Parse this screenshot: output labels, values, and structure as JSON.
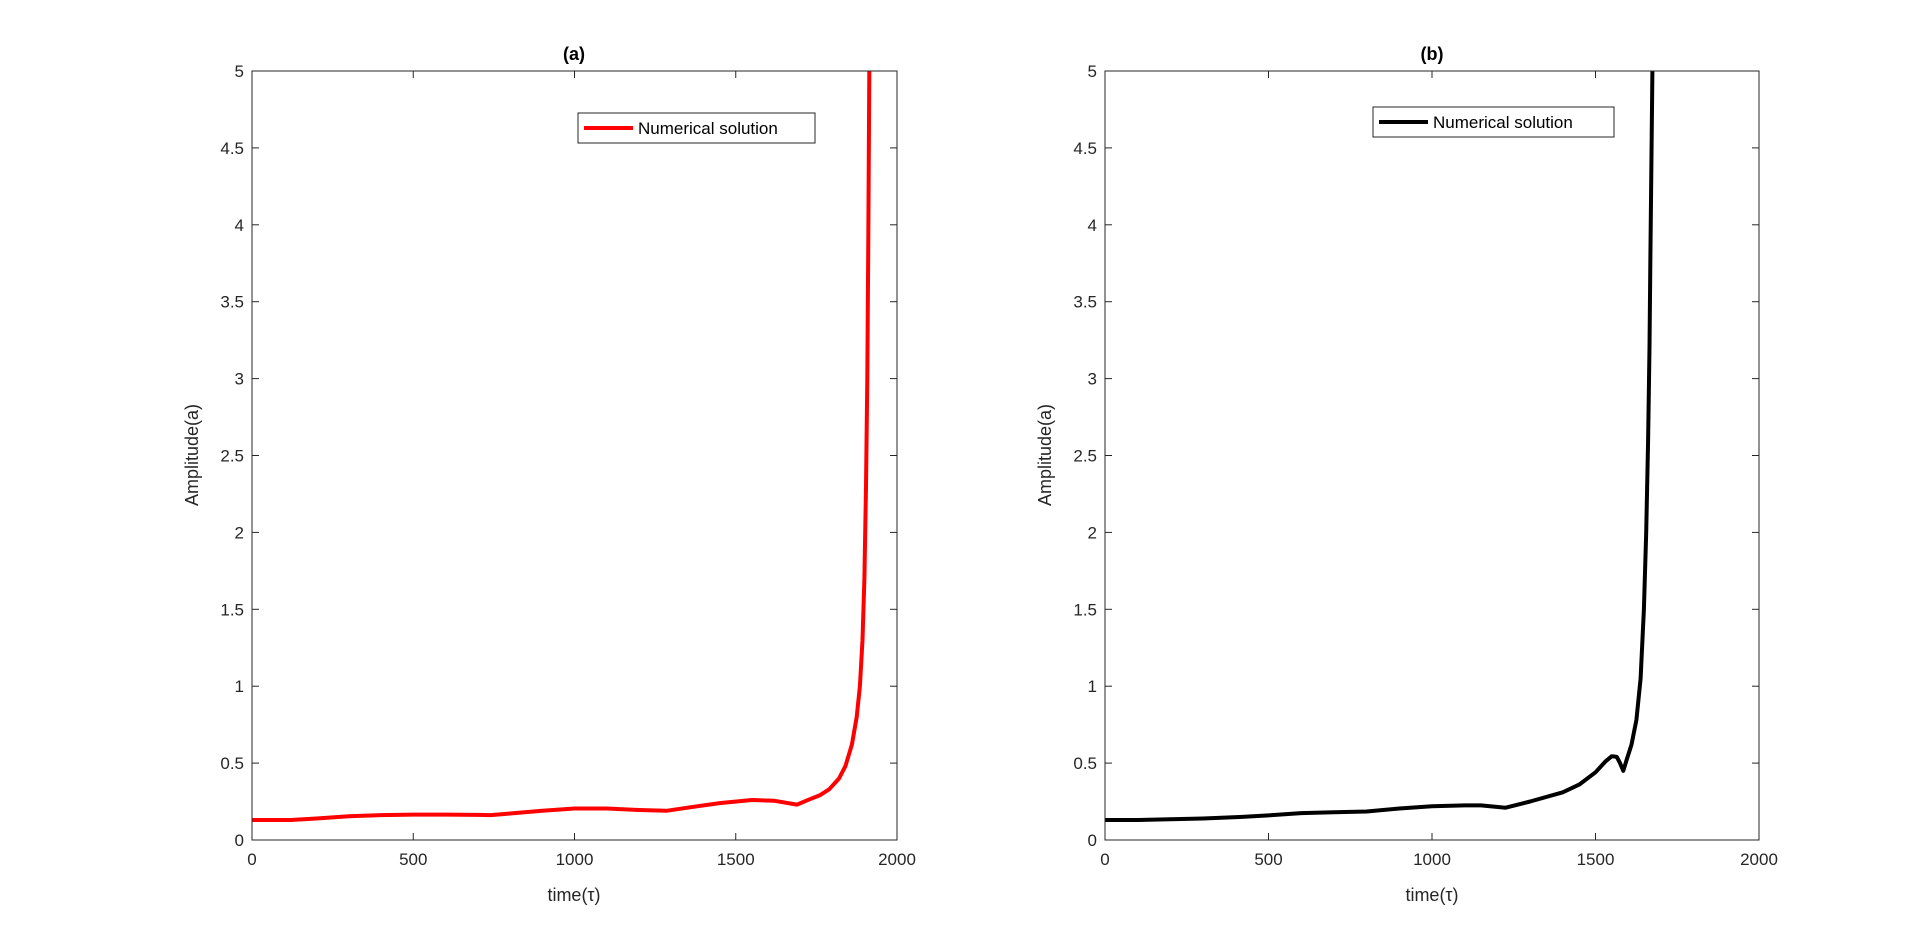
{
  "chart_data": [
    {
      "type": "line",
      "title": "(a)",
      "xlabel": "time(τ)",
      "ylabel": "Amplitude(a)",
      "xlim": [
        0,
        2000
      ],
      "ylim": [
        0,
        5
      ],
      "xticks": [
        0,
        500,
        1000,
        1500,
        2000
      ],
      "yticks": [
        0,
        0.5,
        1,
        1.5,
        2,
        2.5,
        3,
        3.5,
        4,
        4.5,
        5
      ],
      "grid": false,
      "legend_position": "top-right",
      "series": [
        {
          "name": "Numerical solution",
          "color": "#ff0000",
          "x": [
            0,
            120,
            200,
            300,
            400,
            500,
            600,
            700,
            740,
            800,
            900,
            1000,
            1100,
            1200,
            1285,
            1350,
            1450,
            1550,
            1620,
            1690,
            1730,
            1760,
            1790,
            1820,
            1840,
            1860,
            1875,
            1885,
            1893,
            1899,
            1904,
            1908,
            1911,
            1914
          ],
          "y": [
            0.13,
            0.13,
            0.14,
            0.155,
            0.162,
            0.165,
            0.165,
            0.163,
            0.162,
            0.172,
            0.19,
            0.205,
            0.205,
            0.195,
            0.19,
            0.21,
            0.24,
            0.26,
            0.255,
            0.23,
            0.265,
            0.29,
            0.33,
            0.4,
            0.48,
            0.62,
            0.8,
            1.0,
            1.3,
            1.7,
            2.3,
            3.0,
            3.9,
            5.0
          ]
        }
      ]
    },
    {
      "type": "line",
      "title": "(b)",
      "xlabel": "time(τ)",
      "ylabel": "Amplitude(a)",
      "xlim": [
        0,
        2000
      ],
      "ylim": [
        0,
        5
      ],
      "xticks": [
        0,
        500,
        1000,
        1500,
        2000
      ],
      "yticks": [
        0,
        0.5,
        1,
        1.5,
        2,
        2.5,
        3,
        3.5,
        4,
        4.5,
        5
      ],
      "grid": false,
      "legend_position": "top-right",
      "series": [
        {
          "name": "Numerical solution",
          "color": "#000000",
          "x": [
            0,
            100,
            200,
            300,
            420,
            500,
            600,
            700,
            800,
            900,
            1000,
            1100,
            1150,
            1225,
            1300,
            1400,
            1450,
            1500,
            1530,
            1550,
            1565,
            1575,
            1585,
            1595,
            1610,
            1625,
            1638,
            1648,
            1655,
            1661,
            1665,
            1668,
            1671,
            1674
          ],
          "y": [
            0.13,
            0.13,
            0.135,
            0.14,
            0.15,
            0.16,
            0.175,
            0.18,
            0.185,
            0.205,
            0.22,
            0.225,
            0.225,
            0.21,
            0.25,
            0.31,
            0.36,
            0.44,
            0.51,
            0.545,
            0.54,
            0.5,
            0.45,
            0.52,
            0.62,
            0.78,
            1.05,
            1.5,
            2.0,
            2.6,
            3.2,
            3.8,
            4.4,
            5.0
          ]
        }
      ]
    }
  ]
}
